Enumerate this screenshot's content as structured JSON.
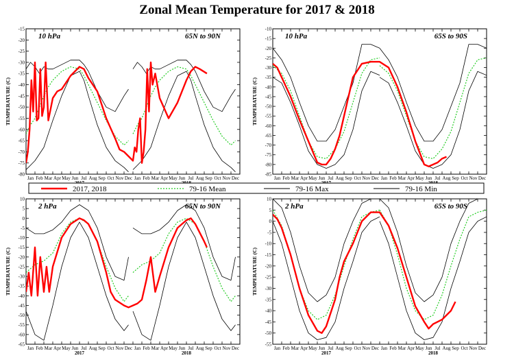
{
  "title": "Zonal Mean Temperature for 2017 & 2018",
  "legend": [
    {
      "name": "2017, 2018",
      "color": "#ff0000",
      "style": "thick-solid"
    },
    {
      "name": "79-16 Mean",
      "color": "#22cc22",
      "style": "dotted"
    },
    {
      "name": "79-16 Max",
      "color": "#000000",
      "style": "solid"
    },
    {
      "name": "79-16 Min",
      "color": "#000000",
      "style": "solid"
    }
  ],
  "chart_data": [
    {
      "type": "line",
      "level": "10 hPa",
      "region": "65N to 90N",
      "ylabel": "TEMPERATURE (C)",
      "ylim": [
        -80,
        -15
      ],
      "yticks": [
        -80,
        -75,
        -70,
        -65,
        -60,
        -55,
        -50,
        -45,
        -40,
        -35,
        -30,
        -25,
        -20,
        -15
      ],
      "months": [
        "Jan",
        "Feb",
        "Mar",
        "Apr",
        "May",
        "Jun",
        "Jul",
        "Aug",
        "Sep",
        "Oct",
        "Nov",
        "Dec",
        "Jan",
        "Feb",
        "Mar",
        "Apr",
        "May",
        "Jun",
        "Jul",
        "Aug",
        "Sep",
        "Oct",
        "Nov",
        "Dec"
      ],
      "years": [
        "2017",
        "2018"
      ],
      "colors": {
        "obs": "#ff0000",
        "mean": "#22cc22",
        "max": "#000000",
        "min": "#000000"
      },
      "series": [
        {
          "name": "79-16 Mean",
          "x": [
            0,
            0.5,
            1,
            1.5,
            2,
            2.5,
            3,
            4,
            5,
            6,
            6.5,
            7,
            8,
            9,
            10,
            11,
            11.5
          ],
          "values": [
            -62,
            -58,
            -55,
            -50,
            -45,
            -41,
            -38,
            -34,
            -32,
            -33,
            -36,
            -40,
            -48,
            -56,
            -63,
            -67,
            -65
          ]
        },
        {
          "name": "79-16 Max",
          "x": [
            0,
            0.5,
            1,
            1.5,
            2,
            2.5,
            3,
            4,
            5,
            6,
            6.5,
            7,
            8,
            9,
            10,
            11,
            11.5
          ],
          "values": [
            -33,
            -30,
            -32,
            -35,
            -32,
            -33,
            -33,
            -31,
            -29,
            -29,
            -31,
            -34,
            -43,
            -50,
            -52,
            -45,
            -42
          ]
        },
        {
          "name": "79-16 Min",
          "x": [
            0,
            0.5,
            1,
            1.5,
            2,
            2.5,
            3,
            4,
            5,
            6,
            6.5,
            7,
            8,
            9,
            10,
            11,
            11.5
          ],
          "values": [
            -78,
            -76,
            -74,
            -71,
            -68,
            -62,
            -56,
            -45,
            -36,
            -34,
            -38,
            -45,
            -58,
            -68,
            -74,
            -77,
            -79
          ]
        },
        {
          "name": "2017",
          "x": [
            0,
            0.2,
            0.4,
            0.6,
            0.8,
            1,
            1.2,
            1.4,
            1.6,
            1.8,
            2,
            2.2,
            2.5,
            3,
            3.5,
            4,
            5,
            6,
            6.5,
            7,
            8,
            9,
            10,
            10.5,
            11,
            11.5,
            12,
            12.2,
            12.4,
            12.6,
            12.8,
            13,
            13.2,
            13.4,
            13.6,
            13.8,
            14,
            14.2,
            14.5,
            15,
            16,
            17,
            18,
            18.5,
            19,
            19.5,
            20.3
          ],
          "values": [
            -75,
            -70,
            -60,
            -38,
            -52,
            -30,
            -56,
            -55,
            -33,
            -54,
            -50,
            -30,
            -56,
            -46,
            -43,
            -42,
            -36,
            -32,
            -33,
            -37,
            -43,
            -55,
            -64,
            -69,
            -70,
            -72,
            -74,
            -68,
            -70,
            -60,
            -55,
            -75,
            -70,
            -60,
            -33,
            -52,
            -30,
            -40,
            -35,
            -46,
            -55,
            -48,
            -38,
            -34,
            -32,
            -33,
            -35
          ]
        }
      ]
    },
    {
      "type": "line",
      "level": "10 hPa",
      "region": "65S to 90S",
      "ylabel": "TEMPERATURE (C)",
      "ylim": [
        -85,
        -10
      ],
      "yticks": [
        -85,
        -80,
        -75,
        -70,
        -65,
        -60,
        -55,
        -50,
        -45,
        -40,
        -35,
        -30,
        -25,
        -20,
        -15,
        -10
      ],
      "months": [
        "Jan",
        "Feb",
        "Mar",
        "Apr",
        "May",
        "Jun",
        "Jul",
        "Aug",
        "Sep",
        "Oct",
        "Nov",
        "Dec",
        "Jan",
        "Feb",
        "Mar",
        "Apr",
        "May",
        "Jun",
        "Jul",
        "Aug",
        "Sep",
        "Oct",
        "Nov",
        "Dec"
      ],
      "years": [
        "2017",
        "2018"
      ],
      "colors": {
        "obs": "#ff0000",
        "mean": "#22cc22",
        "max": "#000000",
        "min": "#000000"
      },
      "series": [
        {
          "name": "79-16 Mean",
          "x": [
            0,
            1,
            2,
            3,
            4,
            5,
            6,
            7,
            8,
            9,
            10,
            11,
            12
          ],
          "values": [
            -29,
            -33,
            -42,
            -55,
            -68,
            -76,
            -77,
            -72,
            -63,
            -48,
            -33,
            -26,
            -25
          ]
        },
        {
          "name": "79-16 Max",
          "x": [
            0,
            1,
            2,
            3,
            4,
            5,
            6,
            7,
            8,
            9,
            10,
            11,
            12
          ],
          "values": [
            -20,
            -26,
            -35,
            -48,
            -60,
            -68,
            -68,
            -62,
            -50,
            -38,
            -18,
            -18,
            -20
          ]
        },
        {
          "name": "79-16 Min",
          "x": [
            0,
            1,
            2,
            3,
            4,
            5,
            6,
            7,
            8,
            9,
            10,
            11,
            12
          ],
          "values": [
            -35,
            -38,
            -48,
            -60,
            -73,
            -80,
            -82,
            -80,
            -75,
            -62,
            -42,
            -32,
            -34
          ]
        },
        {
          "name": "2017",
          "x": [
            0,
            0.5,
            1,
            2,
            3,
            4,
            5,
            5.5,
            6,
            6.5,
            7,
            7.5,
            8,
            9,
            10,
            11,
            12,
            13,
            14,
            15,
            16,
            17,
            17.5,
            18,
            18.5,
            19,
            19.5
          ],
          "values": [
            -28,
            -30,
            -35,
            -45,
            -57,
            -68,
            -79,
            -80,
            -80,
            -77,
            -72,
            -65,
            -55,
            -35,
            -28,
            -27,
            -27,
            -30,
            -40,
            -53,
            -68,
            -80,
            -81,
            -80,
            -79,
            -77,
            -76
          ]
        }
      ]
    },
    {
      "type": "line",
      "level": "2 hPa",
      "region": "65N to 90N",
      "ylabel": "TEMPERATURE (C)",
      "ylim": [
        -65,
        10
      ],
      "yticks": [
        -65,
        -60,
        -55,
        -50,
        -45,
        -40,
        -35,
        -30,
        -25,
        -20,
        -15,
        -10,
        -5,
        0,
        5,
        10
      ],
      "months": [
        "Jan",
        "Feb",
        "Mar",
        "Apr",
        "May",
        "Jun",
        "Jul",
        "Aug",
        "Sep",
        "Oct",
        "Nov",
        "Dec",
        "Jan",
        "Feb",
        "Mar",
        "Apr",
        "May",
        "Jun",
        "Jul",
        "Aug",
        "Sep",
        "Oct",
        "Nov",
        "Dec"
      ],
      "years": [
        "2017",
        "2018"
      ],
      "colors": {
        "obs": "#ff0000",
        "mean": "#22cc22",
        "max": "#000000",
        "min": "#000000"
      },
      "series": [
        {
          "name": "79-16 Mean",
          "x": [
            0,
            1,
            2,
            3,
            4,
            5,
            6,
            7,
            8,
            9,
            10,
            11,
            11.5
          ],
          "values": [
            -28,
            -24,
            -22,
            -18,
            -8,
            -2,
            0,
            -3,
            -12,
            -25,
            -36,
            -43,
            -40
          ]
        },
        {
          "name": "79-16 Max",
          "x": [
            0,
            1,
            2,
            3,
            4,
            5,
            6,
            7,
            8,
            9,
            10,
            11,
            11.5
          ],
          "values": [
            -5,
            -8,
            -8,
            -6,
            -2,
            4,
            7,
            4,
            -5,
            -20,
            -30,
            -32,
            -20
          ]
        },
        {
          "name": "79-16 Min",
          "x": [
            0,
            1,
            2,
            3,
            4,
            5,
            6,
            7,
            8,
            9,
            10,
            11,
            11.5
          ],
          "values": [
            -48,
            -60,
            -63,
            -45,
            -25,
            -10,
            -2,
            -10,
            -25,
            -40,
            -52,
            -58,
            -55
          ]
        },
        {
          "name": "2017",
          "x": [
            0,
            0.3,
            0.6,
            1,
            1.3,
            1.6,
            2,
            2.3,
            2.6,
            3,
            4,
            5,
            6,
            6.5,
            7,
            8,
            9,
            9.5,
            10,
            11,
            11.5,
            12,
            12.5,
            13,
            13.5,
            14,
            14.5,
            15,
            16,
            17,
            18,
            18.5,
            19,
            20,
            20.3
          ],
          "values": [
            -38,
            -28,
            -40,
            -15,
            -40,
            -20,
            -38,
            -25,
            -38,
            -25,
            -10,
            -3,
            0,
            -1,
            -3,
            -12,
            -28,
            -38,
            -42,
            -45,
            -46,
            -45,
            -44,
            -42,
            -32,
            -20,
            -38,
            -30,
            -15,
            -5,
            -1,
            0,
            -3,
            -12,
            -15
          ]
        }
      ]
    },
    {
      "type": "line",
      "level": "2 hPa",
      "region": "65S to 90S",
      "ylabel": "TEMPERATURE (C)",
      "ylim": [
        -55,
        10
      ],
      "yticks": [
        -55,
        -50,
        -45,
        -40,
        -35,
        -30,
        -25,
        -20,
        -15,
        -10,
        -5,
        0,
        5,
        10
      ],
      "months": [
        "Jan",
        "Feb",
        "Mar",
        "Apr",
        "May",
        "Jun",
        "Jul",
        "Aug",
        "Sep",
        "Oct",
        "Nov",
        "Dec",
        "Jan",
        "Feb",
        "Mar",
        "Apr",
        "May",
        "Jun",
        "Jul",
        "Aug",
        "Sep",
        "Oct",
        "Nov",
        "Dec"
      ],
      "years": [
        "2017",
        "2018"
      ],
      "colors": {
        "obs": "#ff0000",
        "mean": "#22cc22",
        "max": "#000000",
        "min": "#000000"
      },
      "series": [
        {
          "name": "79-16 Mean",
          "x": [
            0,
            1,
            2,
            3,
            4,
            5,
            6,
            7,
            8,
            9,
            10,
            11,
            12
          ],
          "values": [
            5,
            -2,
            -15,
            -30,
            -40,
            -44,
            -42,
            -33,
            -20,
            -8,
            2,
            4,
            5
          ]
        },
        {
          "name": "79-16 Max",
          "x": [
            0,
            1,
            2,
            3,
            4,
            5,
            6,
            7,
            8,
            9,
            10,
            11,
            12
          ],
          "values": [
            10,
            6,
            -5,
            -20,
            -32,
            -36,
            -33,
            -25,
            -10,
            0,
            8,
            10,
            10
          ]
        },
        {
          "name": "79-16 Min",
          "x": [
            0,
            1,
            2,
            3,
            4,
            5,
            6,
            7,
            8,
            9,
            10,
            11,
            12
          ],
          "values": [
            0,
            -10,
            -25,
            -40,
            -50,
            -53,
            -52,
            -45,
            -30,
            -18,
            -5,
            0,
            2
          ]
        },
        {
          "name": "2017",
          "x": [
            0,
            0.5,
            1,
            2,
            3,
            4,
            5,
            5.5,
            6,
            7,
            7.5,
            8,
            9,
            10,
            11,
            12,
            13,
            14,
            15,
            16,
            17,
            17.5,
            18,
            19,
            20,
            20.5
          ],
          "values": [
            3,
            1,
            -3,
            -15,
            -30,
            -42,
            -49,
            -50,
            -47,
            -35,
            -25,
            -18,
            -10,
            0,
            4,
            4,
            -2,
            -12,
            -25,
            -38,
            -45,
            -48,
            -46,
            -44,
            -40,
            -36
          ]
        }
      ]
    }
  ]
}
